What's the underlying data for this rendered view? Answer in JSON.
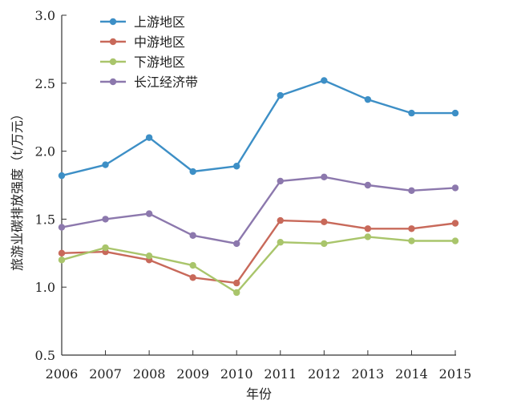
{
  "chart_data": {
    "type": "line",
    "title": "",
    "xlabel": "年份",
    "ylabel": "旅游业碳排放强度（t/万元）",
    "x": [
      "2006",
      "2007",
      "2008",
      "2009",
      "2010",
      "2011",
      "2012",
      "2013",
      "2014",
      "2015"
    ],
    "ylim": [
      0.5,
      3.0
    ],
    "yticks": [
      "0.5",
      "1.0",
      "1.5",
      "2.0",
      "2.5",
      "3.0"
    ],
    "grid": false,
    "legend_position": "top-left",
    "series": [
      {
        "name": "上游地区",
        "color": "#3d8fc6",
        "values": [
          1.82,
          1.9,
          2.1,
          1.85,
          1.89,
          2.41,
          2.52,
          2.38,
          2.28,
          2.28
        ]
      },
      {
        "name": "中游地区",
        "color": "#c8695a",
        "values": [
          1.25,
          1.26,
          1.2,
          1.07,
          1.03,
          1.49,
          1.48,
          1.43,
          1.43,
          1.47
        ]
      },
      {
        "name": "下游地区",
        "color": "#a9c56b",
        "values": [
          1.2,
          1.29,
          1.23,
          1.16,
          0.96,
          1.33,
          1.32,
          1.37,
          1.34,
          1.34
        ]
      },
      {
        "name": "长江经济带",
        "color": "#8c78ad",
        "values": [
          1.44,
          1.5,
          1.54,
          1.38,
          1.32,
          1.78,
          1.81,
          1.75,
          1.71,
          1.73
        ]
      }
    ]
  }
}
